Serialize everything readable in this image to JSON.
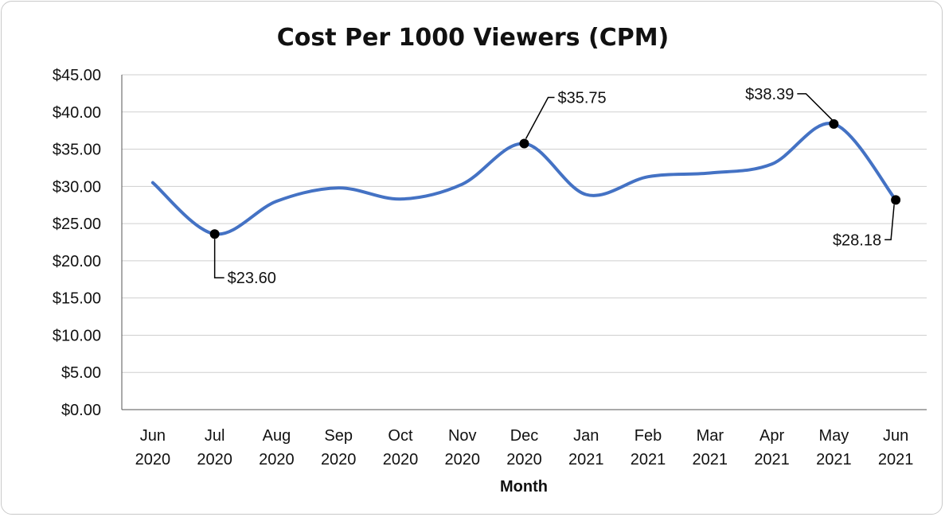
{
  "chart_data": {
    "type": "line",
    "title": "Cost Per 1000 Viewers (CPM)",
    "xlabel": "Month",
    "ylabel": "",
    "ylim": [
      0,
      45
    ],
    "yticks": [
      "$0.00",
      "$5.00",
      "$10.00",
      "$15.00",
      "$20.00",
      "$25.00",
      "$30.00",
      "$35.00",
      "$40.00",
      "$45.00"
    ],
    "categories": [
      [
        "Jun",
        "2020"
      ],
      [
        "Jul",
        "2020"
      ],
      [
        "Aug",
        "2020"
      ],
      [
        "Sep",
        "2020"
      ],
      [
        "Oct",
        "2020"
      ],
      [
        "Nov",
        "2020"
      ],
      [
        "Dec",
        "2020"
      ],
      [
        "Jan",
        "2021"
      ],
      [
        "Feb",
        "2021"
      ],
      [
        "Mar",
        "2021"
      ],
      [
        "Apr",
        "2021"
      ],
      [
        "May",
        "2021"
      ],
      [
        "Jun",
        "2021"
      ]
    ],
    "series": [
      {
        "values": [
          30.5,
          23.6,
          28.0,
          29.8,
          28.3,
          30.3,
          35.75,
          28.9,
          31.3,
          31.8,
          33.0,
          38.39,
          28.18
        ],
        "color": "#4472c4",
        "smooth": true
      }
    ],
    "annotations": [
      {
        "index": 1,
        "label": "$23.60",
        "placement": "below-right"
      },
      {
        "index": 6,
        "label": "$35.75",
        "placement": "above-right"
      },
      {
        "index": 11,
        "label": "$38.39",
        "placement": "above-left"
      },
      {
        "index": 12,
        "label": "$28.18",
        "placement": "below-left"
      }
    ],
    "grid": true,
    "legend": "none"
  }
}
